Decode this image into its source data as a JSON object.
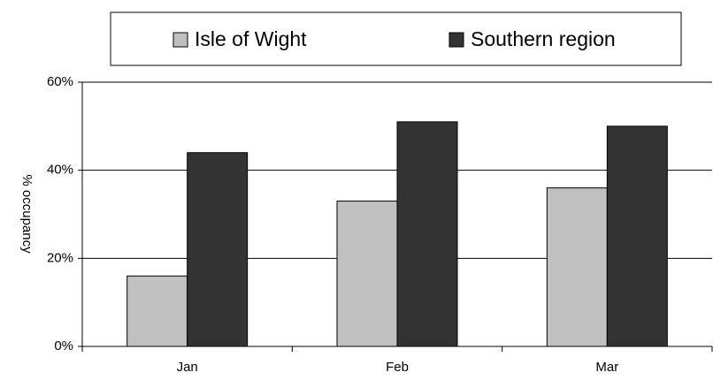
{
  "chart_data": {
    "type": "bar",
    "y_label": "% occupancy",
    "categories": [
      "Jan",
      "Feb",
      "Mar"
    ],
    "series": [
      {
        "name": "Isle of Wight",
        "color": "#c0c0c0",
        "values": [
          16,
          33,
          36
        ]
      },
      {
        "name": "Southern region",
        "color": "#333333",
        "values": [
          44,
          51,
          50
        ]
      }
    ],
    "ylim": [
      0,
      60
    ],
    "yticks": [
      {
        "value": 0,
        "label": "0%"
      },
      {
        "value": 20,
        "label": "20%"
      },
      {
        "value": 40,
        "label": "40%"
      },
      {
        "value": 60,
        "label": "60%"
      }
    ],
    "grid": true,
    "legend": "top"
  }
}
